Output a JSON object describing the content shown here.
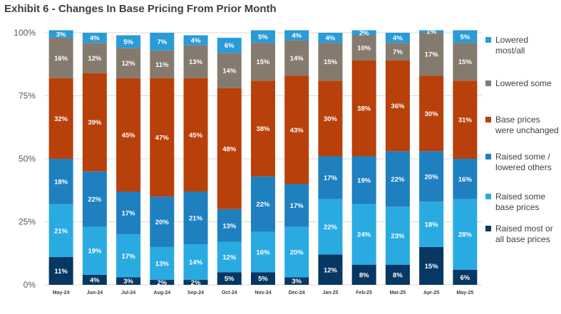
{
  "title": "Exhibit 6 - Changes In Base Pricing From Prior Month",
  "chart_data": {
    "type": "bar",
    "stacked": true,
    "percent": true,
    "title": "Exhibit 6 - Changes In Base Pricing From Prior Month",
    "ylim": [
      0,
      100
    ],
    "yticks": [
      "0%",
      "25%",
      "50%",
      "75%",
      "100%"
    ],
    "categories": [
      "May-24",
      "Jun-24",
      "Jul-24",
      "Aug-24",
      "Sep-24",
      "Oct-24",
      "Nov-24",
      "Dec-24",
      "Jan-25",
      "Feb-25",
      "Mar-25",
      "Apr-25",
      "May-25"
    ],
    "series": [
      {
        "name": "Raised most or all base prices",
        "color": "#073763",
        "labelColor": "#ffffff",
        "values": [
          11,
          4,
          3,
          2,
          2,
          5,
          5,
          3,
          12,
          8,
          8,
          15,
          6
        ],
        "labels": [
          "11%",
          "4%",
          "3%",
          "2%",
          "2%",
          "5%",
          "5%",
          "3%",
          "12%",
          "8%",
          "8%",
          "15%",
          "6%"
        ]
      },
      {
        "name": "Raised some base prices",
        "color": "#29abe2",
        "labelColor": "#ffffff",
        "values": [
          21,
          19,
          17,
          13,
          14,
          12,
          16,
          20,
          22,
          24,
          23,
          18,
          28
        ],
        "labels": [
          "21%",
          "19%",
          "17%",
          "13%",
          "14%",
          "12%",
          "16%",
          "20%",
          "22%",
          "24%",
          "23%",
          "18%",
          "28%"
        ]
      },
      {
        "name": "Raised some / lowered others",
        "color": "#1f80c0",
        "labelColor": "#ffffff",
        "values": [
          18,
          22,
          17,
          20,
          21,
          13,
          22,
          17,
          17,
          19,
          22,
          20,
          16
        ],
        "labels": [
          "18%",
          "22%",
          "17%",
          "20%",
          "21%",
          "13%",
          "22%",
          "17%",
          "17%",
          "19%",
          "22%",
          "20%",
          "16%"
        ]
      },
      {
        "name": "Base prices were unchanged",
        "color": "#b8400a",
        "labelColor": "#ffffff",
        "values": [
          32,
          39,
          45,
          47,
          45,
          48,
          38,
          43,
          30,
          38,
          36,
          30,
          31
        ],
        "labels": [
          "32%",
          "39%",
          "45%",
          "47%",
          "45%",
          "48%",
          "38%",
          "43%",
          "30%",
          "38%",
          "36%",
          "30%",
          "31%"
        ]
      },
      {
        "name": "Lowered some",
        "color": "#857a6e",
        "labelColor": "#ffffff",
        "values": [
          16,
          12,
          12,
          11,
          13,
          14,
          15,
          14,
          15,
          10,
          7,
          17,
          15
        ],
        "labels": [
          "16%",
          "12%",
          "12%",
          "11%",
          "13%",
          "14%",
          "15%",
          "14%",
          "15%",
          "10%",
          "7%",
          "17%",
          "15%"
        ]
      },
      {
        "name": "Lowered most/all",
        "color": "#2a9bd7",
        "labelColor": "#ffffff",
        "values": [
          3,
          4,
          5,
          7,
          4,
          6,
          5,
          4,
          4,
          2,
          4,
          1,
          5
        ],
        "labels": [
          "3%",
          "4%",
          "5%",
          "7%",
          "4%",
          "6%",
          "5%",
          "4%",
          "4%",
          "2%",
          "4%",
          "1%",
          "5%"
        ]
      }
    ]
  },
  "legend": [
    {
      "name": "lowered-most-all",
      "color": "#2a9bd7",
      "label": "Lowered most/all"
    },
    {
      "name": "lowered-some",
      "color": "#857a6e",
      "label": "Lowered some"
    },
    {
      "name": "unchanged",
      "color": "#b8400a",
      "label": "Base prices were unchanged"
    },
    {
      "name": "raised-some-lowered-others",
      "color": "#1f80c0",
      "label": "Raised some / lowered others"
    },
    {
      "name": "raised-some",
      "color": "#29abe2",
      "label": "Raised some base prices"
    },
    {
      "name": "raised-most-all",
      "color": "#073763",
      "label": "Raised most or all base prices"
    }
  ]
}
